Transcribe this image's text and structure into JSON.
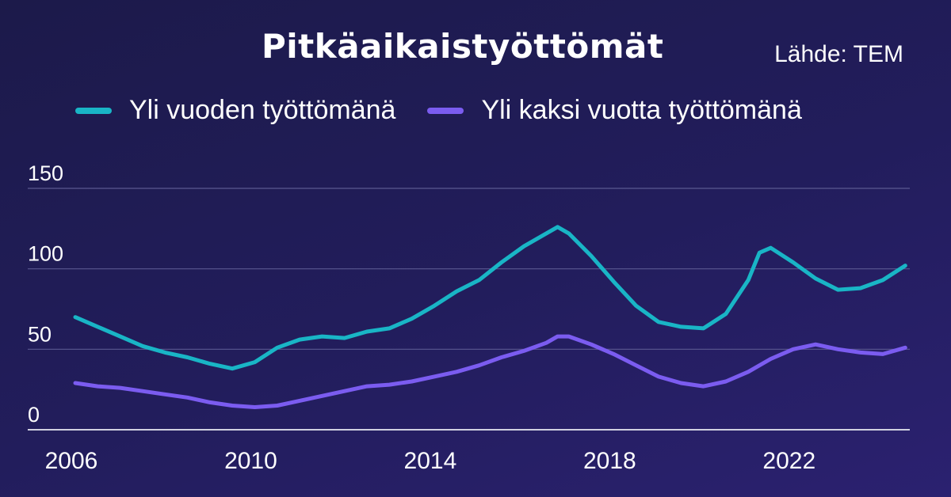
{
  "chart_data": {
    "type": "line",
    "title": "Pitkäaikaistyöttömät",
    "source": "Lähde: TEM",
    "xlabel": "",
    "ylabel": "",
    "x_range": [
      2006.0,
      2024.6
    ],
    "ylim": [
      0,
      150
    ],
    "y_ticks": [
      "0",
      "50",
      "100",
      "150"
    ],
    "x_ticks": [
      "2006",
      "2010",
      "2014",
      "2018",
      "2022"
    ],
    "grid": true,
    "legend_position": "top",
    "series": [
      {
        "name": "Yli vuoden työttömänä",
        "color": "#19b5c6",
        "x": [
          2006.0,
          2006.5,
          2007.0,
          2007.5,
          2008.0,
          2008.5,
          2009.0,
          2009.5,
          2010.0,
          2010.5,
          2011.0,
          2011.5,
          2012.0,
          2012.5,
          2013.0,
          2013.5,
          2014.0,
          2014.5,
          2015.0,
          2015.5,
          2016.0,
          2016.5,
          2016.75,
          2017.0,
          2017.5,
          2018.0,
          2018.5,
          2019.0,
          2019.5,
          2020.0,
          2020.5,
          2021.0,
          2021.25,
          2021.5,
          2022.0,
          2022.5,
          2023.0,
          2023.5,
          2024.0,
          2024.5
        ],
        "values": [
          70,
          64,
          58,
          52,
          48,
          45,
          41,
          38,
          42,
          51,
          56,
          58,
          57,
          61,
          63,
          69,
          77,
          86,
          93,
          104,
          114,
          122,
          126,
          122,
          108,
          92,
          77,
          67,
          64,
          63,
          72,
          93,
          110,
          113,
          104,
          94,
          87,
          88,
          93,
          102
        ]
      },
      {
        "name": "Yli kaksi vuotta työttömänä",
        "color": "#7b5cf0",
        "x": [
          2006.0,
          2006.5,
          2007.0,
          2007.5,
          2008.0,
          2008.5,
          2009.0,
          2009.5,
          2010.0,
          2010.5,
          2011.0,
          2011.5,
          2012.0,
          2012.5,
          2013.0,
          2013.5,
          2014.0,
          2014.5,
          2015.0,
          2015.5,
          2016.0,
          2016.5,
          2016.75,
          2017.0,
          2017.5,
          2018.0,
          2018.5,
          2019.0,
          2019.5,
          2020.0,
          2020.5,
          2021.0,
          2021.5,
          2022.0,
          2022.5,
          2023.0,
          2023.5,
          2024.0,
          2024.5
        ],
        "values": [
          29,
          27,
          26,
          24,
          22,
          20,
          17,
          15,
          14,
          15,
          18,
          21,
          24,
          27,
          28,
          30,
          33,
          36,
          40,
          45,
          49,
          54,
          58,
          58,
          53,
          47,
          40,
          33,
          29,
          27,
          30,
          36,
          44,
          50,
          53,
          50,
          48,
          47,
          51
        ]
      }
    ]
  }
}
